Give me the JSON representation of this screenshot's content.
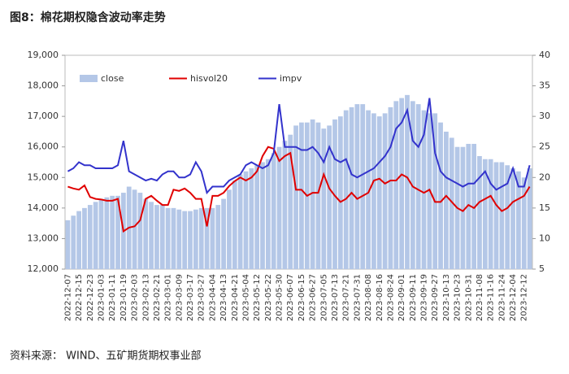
{
  "chart_data": {
    "type": "combo",
    "title": "图8：棉花期权隐含波动率走势",
    "source": "资料来源： WIND、五矿期货期权事业部",
    "categories": [
      "2022-12-07",
      null,
      "2022-12-15",
      null,
      "2022-12-23",
      null,
      "2023-01-03",
      null,
      "2023-01-11",
      null,
      "2023-01-19",
      null,
      "2023-02-03",
      null,
      "2023-02-13",
      null,
      "2023-02-21",
      null,
      "2023-03-01",
      null,
      "2023-03-09",
      null,
      "2023-03-17",
      null,
      "2023-03-27",
      null,
      "2023-04-04",
      null,
      "2023-04-13",
      null,
      "2023-04-21",
      null,
      "2023-05-04",
      null,
      "2023-05-12",
      null,
      "2023-05-22",
      null,
      "2023-05-30",
      null,
      "2023-06-07",
      null,
      "2023-06-15",
      null,
      "2023-06-27",
      null,
      "2023-07-05",
      null,
      "2023-07-13",
      null,
      "2023-07-21",
      null,
      "2023-07-31",
      null,
      "2023-08-08",
      null,
      "2023-08-16",
      null,
      "2023-08-24",
      null,
      "2023-09-01",
      null,
      "2023-09-11",
      null,
      "2023-09-19",
      null,
      "2023-09-27",
      null,
      "2023-10-13",
      null,
      "2023-10-23",
      null,
      "2023-10-31",
      null,
      "2023-11-08",
      null,
      "2023-11-16",
      null,
      "2023-11-24",
      null,
      "2023-12-04",
      null,
      "2023-12-12",
      null
    ],
    "series": [
      {
        "name": "close",
        "type": "bar",
        "color": "#b4c7e7",
        "values": [
          13600,
          13750,
          13900,
          14000,
          14100,
          14200,
          14300,
          14350,
          14400,
          14400,
          14500,
          14700,
          14600,
          14500,
          14300,
          14200,
          14100,
          14100,
          14000,
          14000,
          13950,
          13900,
          13900,
          13950,
          14000,
          14000,
          14000,
          14100,
          14300,
          14600,
          14900,
          15100,
          15200,
          15300,
          15400,
          15500,
          15600,
          15800,
          16000,
          16200,
          16400,
          16700,
          16800,
          16800,
          16900,
          16800,
          16600,
          16700,
          16900,
          17000,
          17200,
          17300,
          17400,
          17400,
          17200,
          17100,
          17000,
          17100,
          17300,
          17500,
          17600,
          17700,
          17500,
          17400,
          17200,
          17100,
          17100,
          16800,
          16500,
          16300,
          16000,
          16000,
          16100,
          16100,
          15700,
          15600,
          15600,
          15500,
          15500,
          15400,
          15300,
          15200,
          15000,
          15300
        ]
      },
      {
        "name": "hisvol20",
        "type": "line",
        "axis": "y2",
        "color": "#e00000",
        "values": [
          18.5,
          18.2,
          18.0,
          18.7,
          16.8,
          16.5,
          16.4,
          16.2,
          16.2,
          16.5,
          11.2,
          11.8,
          12.0,
          13.0,
          16.5,
          17.0,
          16.2,
          15.5,
          15.5,
          18.0,
          17.8,
          18.2,
          17.5,
          16.5,
          16.5,
          12.0,
          17.0,
          17.0,
          17.5,
          18.6,
          19.4,
          20.0,
          19.5,
          20.0,
          21.0,
          23.5,
          25.0,
          24.7,
          22.7,
          23.5,
          24.0,
          18.0,
          18.0,
          17.0,
          17.5,
          17.5,
          20.5,
          18.2,
          17.0,
          16.0,
          16.5,
          17.5,
          16.5,
          17.0,
          17.5,
          19.5,
          19.8,
          19.0,
          19.5,
          19.5,
          20.5,
          20.0,
          18.5,
          18.0,
          17.5,
          18.0,
          16.0,
          16.0,
          17.0,
          16.0,
          15.0,
          14.5,
          15.5,
          15.0,
          16.0,
          16.5,
          17.0,
          15.5,
          14.5,
          15.0,
          16.0,
          16.5,
          17.0,
          18.5
        ]
      },
      {
        "name": "impv",
        "type": "line",
        "axis": "y2",
        "color": "#3333cc",
        "values": [
          21.0,
          21.5,
          22.5,
          22.0,
          22.0,
          21.5,
          21.5,
          21.5,
          21.5,
          22.0,
          26.0,
          21.0,
          20.5,
          20.0,
          19.5,
          19.8,
          19.5,
          20.5,
          21.0,
          21.0,
          20.0,
          20.0,
          20.5,
          22.5,
          21.0,
          17.5,
          18.5,
          18.5,
          18.5,
          19.5,
          20.0,
          20.5,
          22.0,
          22.5,
          22.0,
          21.5,
          22.0,
          24.0,
          32.0,
          25.0,
          25.0,
          25.0,
          24.5,
          24.5,
          25.0,
          24.0,
          22.5,
          25.0,
          23.0,
          22.5,
          23.0,
          20.5,
          20.0,
          20.5,
          21.0,
          21.5,
          22.5,
          23.5,
          25.0,
          28.0,
          29.0,
          31.0,
          26.0,
          25.0,
          27.0,
          33.0,
          24.0,
          21.0,
          20.0,
          19.5,
          19.0,
          18.5,
          19.0,
          19.0,
          20.0,
          21.0,
          19.0,
          18.0,
          18.5,
          19.0,
          21.5,
          18.5,
          18.5,
          22.0
        ]
      }
    ],
    "ylim": [
      12000,
      19000
    ],
    "yticks": [
      {
        "value": 12000,
        "label": "12,000"
      },
      {
        "value": 13000,
        "label": "13,000"
      },
      {
        "value": 14000,
        "label": "14,000"
      },
      {
        "value": 15000,
        "label": "15,000"
      },
      {
        "value": 16000,
        "label": "16,000"
      },
      {
        "value": 17000,
        "label": "17,000"
      },
      {
        "value": 18000,
        "label": "18,000"
      },
      {
        "value": 19000,
        "label": "19,000"
      }
    ],
    "y2lim": [
      5,
      40
    ],
    "y2ticks": [
      5,
      10,
      15,
      20,
      25,
      30,
      35,
      40
    ],
    "legend": "top-left"
  }
}
